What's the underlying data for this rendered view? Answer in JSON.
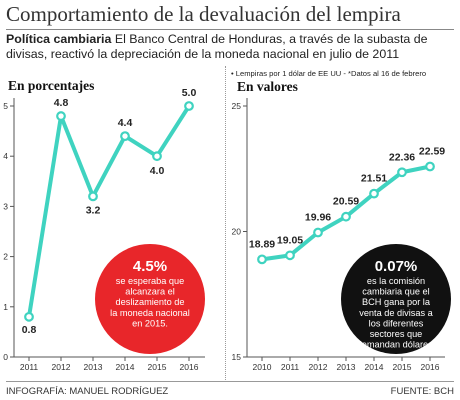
{
  "header": {
    "title": "Comportamiento de la devaluación del lempira",
    "intro_bold": "Política cambiaria",
    "intro_text": "El Banco Central de Honduras, a través de la subasta de divisas, reactivó la depreciación de la moneda nacional en julio de 2011"
  },
  "footer": {
    "credit": "INFOGRAFÍA: MANUEL RODRÍGUEZ",
    "source": "FUENTE: BCH"
  },
  "colors": {
    "line": "#3fd3c0",
    "red_circle": "#e8262a",
    "black_circle": "#111111",
    "axis": "#555555"
  },
  "chart_data": [
    {
      "type": "line",
      "title": "En porcentajes",
      "x": [
        "2011",
        "2012",
        "2013",
        "2014",
        "2015",
        "2016"
      ],
      "values": [
        0.8,
        4.8,
        3.2,
        4.4,
        4.0,
        5.0
      ],
      "value_labels": [
        "0.8",
        "4.8",
        "3.2",
        "4.4",
        "4.0",
        "5.0"
      ],
      "yticks": [
        "0",
        "1",
        "2",
        "3",
        "4",
        "5"
      ],
      "ylim": [
        0,
        5
      ],
      "callout": {
        "highlight": "4.5%",
        "text": "se esperaba que alcanzara el deslizamiento de la moneda nacional en 2015."
      }
    },
    {
      "type": "line",
      "title": "En valores",
      "subtitle": "Lempiras por 1 dólar de EE UU - *Datos al 16 de febrero",
      "x": [
        "2010",
        "2011",
        "2012",
        "2013",
        "2014",
        "2015",
        "2016"
      ],
      "values": [
        18.89,
        19.05,
        19.96,
        20.59,
        21.51,
        22.36,
        22.59
      ],
      "value_labels": [
        "18.89",
        "19.05",
        "19.96",
        "20.59",
        "21.51",
        "22.36",
        "22.59"
      ],
      "yticks": [
        "15",
        "20",
        "25"
      ],
      "ylim": [
        15,
        25
      ],
      "callout": {
        "highlight": "0.07%",
        "text": "es la comisión cambiaria que el BCH gana por la venta de divisas a los diferentes sectores que demandan dólares."
      }
    }
  ]
}
